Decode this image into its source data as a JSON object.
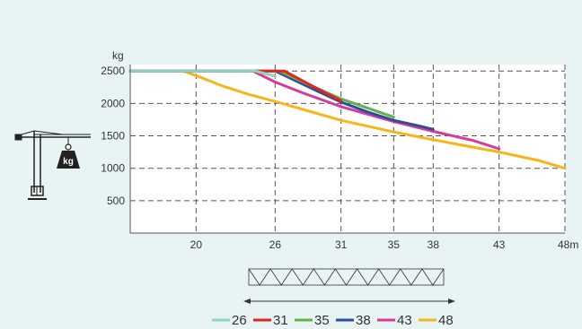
{
  "chart_data": {
    "type": "line",
    "ylabel": "kg",
    "x_unit": "m",
    "x_ticks": [
      20,
      26,
      31,
      35,
      38,
      43,
      48
    ],
    "y_ticks": [
      500,
      1000,
      1500,
      2000,
      2500
    ],
    "xlim": [
      15,
      48
    ],
    "ylim": [
      0,
      2600
    ],
    "grid": true,
    "legend_position": "bottom",
    "series": [
      {
        "name": "26",
        "color": "#8fd3c7",
        "points": [
          [
            15,
            2500
          ],
          [
            24.5,
            2500
          ],
          [
            26,
            2420
          ]
        ]
      },
      {
        "name": "31",
        "color": "#e52420",
        "points": [
          [
            15,
            2500
          ],
          [
            26.7,
            2500
          ],
          [
            29,
            2250
          ],
          [
            31,
            2040
          ]
        ]
      },
      {
        "name": "35",
        "color": "#5cb44a",
        "points": [
          [
            15,
            2500
          ],
          [
            26.3,
            2500
          ],
          [
            29,
            2250
          ],
          [
            31,
            2070
          ],
          [
            33,
            1930
          ],
          [
            35,
            1790
          ]
        ]
      },
      {
        "name": "38",
        "color": "#2e4d9c",
        "points": [
          [
            15,
            2500
          ],
          [
            26.0,
            2500
          ],
          [
            29,
            2210
          ],
          [
            31,
            2020
          ],
          [
            33,
            1870
          ],
          [
            35,
            1740
          ],
          [
            37,
            1650
          ],
          [
            38,
            1600
          ]
        ]
      },
      {
        "name": "43",
        "color": "#d63b9a",
        "points": [
          [
            15,
            2500
          ],
          [
            24.3,
            2500
          ],
          [
            26,
            2330
          ],
          [
            28,
            2170
          ],
          [
            31,
            1950
          ],
          [
            35,
            1720
          ],
          [
            38,
            1570
          ],
          [
            41,
            1430
          ],
          [
            43,
            1300
          ]
        ]
      },
      {
        "name": "48",
        "color": "#f5b51c",
        "points": [
          [
            19,
            2500
          ],
          [
            20,
            2430
          ],
          [
            22,
            2270
          ],
          [
            24,
            2140
          ],
          [
            26,
            2030
          ],
          [
            31,
            1740
          ],
          [
            35,
            1560
          ],
          [
            38,
            1440
          ],
          [
            43,
            1250
          ],
          [
            46,
            1120
          ],
          [
            48,
            1000
          ]
        ]
      }
    ]
  },
  "icons": {
    "crane": "tower-crane-icon",
    "weight": "kg-weight-icon",
    "jib": "jib-section-icon"
  },
  "weight_label": "kg"
}
